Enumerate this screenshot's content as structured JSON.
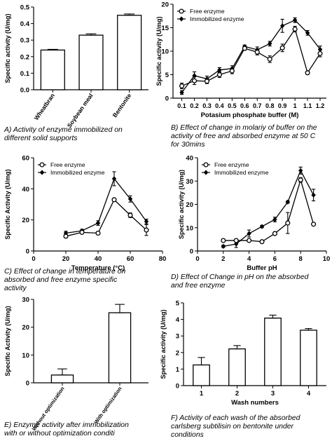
{
  "figure": {
    "background": "#ffffff",
    "ink_color": "#000000"
  },
  "chart_data": [
    {
      "id": "A",
      "type": "bar",
      "title": "",
      "xlabel": "",
      "ylabel": "Specific activity (U/mg)",
      "ylim": [
        0,
        0.5
      ],
      "yticks": [
        0.0,
        0.1,
        0.2,
        0.3,
        0.4,
        0.5
      ],
      "yticklabels": [
        "0.0",
        "0.1",
        "0.2",
        "0.3",
        "0.4",
        "0.5"
      ],
      "categories": [
        "Wheatbran",
        "Soybean meal",
        "Bentonite"
      ],
      "values": [
        0.24,
        0.33,
        0.45
      ],
      "errors": [
        0.004,
        0.008,
        0.008
      ],
      "caption": [
        "A) Activity of enzyme immobilized on",
        "different solid supports"
      ]
    },
    {
      "id": "B",
      "type": "line",
      "title": "",
      "xlabel": "Potasium phosphate buffer (M)",
      "ylabel": "Specific activity (U/mg)",
      "ylim": [
        0,
        20
      ],
      "yticks": [
        0,
        5,
        10,
        15,
        20
      ],
      "yticklabels": [
        "0",
        "5",
        "10",
        "15",
        "20"
      ],
      "x": [
        0.1,
        0.2,
        0.3,
        0.4,
        0.5,
        0.6,
        0.7,
        0.8,
        0.9,
        1.0,
        1.1,
        1.2
      ],
      "xticklabels": [
        "0.1",
        "0.2",
        "0.3",
        "0.4",
        "0.5",
        "0.6",
        "0.7",
        "0.8",
        "0.9",
        "1",
        "1.1",
        "1.2"
      ],
      "legend": [
        "Free enzyme",
        "Immobilized enzyme"
      ],
      "legend_position": "top-left",
      "series": [
        {
          "name": "Free enzyme",
          "marker": "open-circle",
          "values": [
            2.6,
            3.7,
            3.6,
            5.0,
            5.8,
            10.6,
            9.8,
            8.3,
            10.7,
            14.7,
            5.4,
            9.5
          ],
          "errors": [
            0.6,
            0.8,
            0.5,
            0.6,
            0.6,
            0.4,
            0.6,
            0.7,
            0.8,
            0.6,
            0.3,
            0.7
          ]
        },
        {
          "name": "Immobilized enzyme",
          "marker": "filled-diamond",
          "values": [
            1.2,
            4.8,
            4.1,
            6.0,
            6.3,
            11.0,
            10.3,
            11.6,
            15.4,
            16.6,
            13.9,
            10.4
          ],
          "errors": [
            0.4,
            0.8,
            0.6,
            0.5,
            0.6,
            0.3,
            0.6,
            0.5,
            1.4,
            0.5,
            0.5,
            0.7
          ]
        }
      ],
      "caption": [
        "B) Effect of change in molariy of buffer on the",
        "activity of free and absorbed enzyme at 50 C",
        "for 30mins"
      ]
    },
    {
      "id": "C",
      "type": "line",
      "title": "",
      "xlabel": "Temperature (°C)",
      "ylabel": "Specific Activity (U/mg)",
      "xlim": [
        0,
        80
      ],
      "xticks": [
        0,
        20,
        40,
        60,
        80
      ],
      "xticklabels": [
        "0",
        "20",
        "40",
        "60",
        "80"
      ],
      "ylim": [
        0,
        60
      ],
      "yticks": [
        0,
        20,
        40,
        60
      ],
      "yticklabels": [
        "0",
        "20",
        "40",
        "60"
      ],
      "x": [
        20,
        30,
        40,
        50,
        60,
        70
      ],
      "legend": [
        "Free enzyme",
        "Immobilized enzyme"
      ],
      "legend_position": "top-left",
      "series": [
        {
          "name": "Free enzyme",
          "marker": "open-circle",
          "values": [
            9.5,
            12.0,
            11.5,
            33.0,
            23.0,
            13.5
          ],
          "errors": [
            1.0,
            1.0,
            1.0,
            1.0,
            1.5,
            3.5
          ]
        },
        {
          "name": "Immobilized enzyme",
          "marker": "filled-diamond",
          "values": [
            11.5,
            13.0,
            18.0,
            46.5,
            33.5,
            19.0
          ],
          "errors": [
            1.2,
            1.0,
            1.5,
            4.5,
            2.0,
            1.5
          ]
        }
      ],
      "caption": [
        "C) Effect of change in temperature on",
        "absorbed and free enzyme specific",
        "activity"
      ]
    },
    {
      "id": "D",
      "type": "line",
      "title": "",
      "xlabel": "Buffer pH",
      "ylabel": "Specific activity (U/mg)",
      "xlim": [
        0,
        10
      ],
      "xticks": [
        0,
        2,
        4,
        6,
        8,
        10
      ],
      "xticklabels": [
        "0",
        "2",
        "4",
        "6",
        "8",
        "10"
      ],
      "ylim": [
        0,
        40
      ],
      "yticks": [
        0,
        10,
        20,
        30,
        40
      ],
      "yticklabels": [
        "0",
        "10",
        "20",
        "30",
        "40"
      ],
      "legend": [
        "Free enzyme",
        "Immobilized enzyme"
      ],
      "legend_position": "top-left",
      "series": [
        {
          "name": "Free enzyme",
          "marker": "open-circle",
          "x": [
            2,
            3,
            4,
            5,
            6,
            7,
            8,
            9
          ],
          "values": [
            4.5,
            4.5,
            4.5,
            4.0,
            7.5,
            12.0,
            30.5,
            11.5
          ],
          "errors": [
            0.5,
            0.5,
            0.5,
            0.5,
            0.5,
            4.5,
            1.0,
            0.5
          ]
        },
        {
          "name": "Immobilized enzyme",
          "marker": "filled-diamond",
          "x": [
            2,
            3,
            4,
            5,
            6,
            7,
            8,
            9
          ],
          "values": [
            2.0,
            3.0,
            7.5,
            10.5,
            13.5,
            21.0,
            34.5,
            24.0
          ],
          "errors": [
            0.5,
            1.5,
            1.5,
            0.5,
            1.0,
            0.5,
            1.5,
            2.5
          ]
        }
      ],
      "caption": [
        "D) Effect of Change in pH on the absorbed",
        "and free enzyme"
      ]
    },
    {
      "id": "E",
      "type": "bar",
      "title": "",
      "xlabel": "",
      "ylabel": "Specific Activity (U/mg)",
      "ylim": [
        0,
        30
      ],
      "yticks": [
        0,
        10,
        20,
        30
      ],
      "yticklabels": [
        "0",
        "10",
        "20",
        "30"
      ],
      "categories": [
        "Without optimization",
        "With optimization"
      ],
      "values": [
        2.8,
        25.2
      ],
      "errors": [
        2.2,
        3.0
      ],
      "caption": [
        "E) Enzyme activity after immobilization",
        "with or without optimization conditi"
      ]
    },
    {
      "id": "F",
      "type": "bar",
      "title": "",
      "xlabel": "Wash numbers",
      "ylabel": "Specific activity (U/mg)",
      "ylim": [
        0,
        5
      ],
      "yticks": [
        0,
        1,
        2,
        3,
        4,
        5
      ],
      "yticklabels": [
        "0",
        "1",
        "2",
        "3",
        "4",
        "5"
      ],
      "categories": [
        "1",
        "2",
        "3",
        "4"
      ],
      "values": [
        1.25,
        2.22,
        4.08,
        3.35
      ],
      "errors": [
        0.45,
        0.2,
        0.18,
        0.1
      ],
      "caption": [
        "F) Activity of each wash of the absorbed",
        "carlsberg subtilisin on bentonite under",
        "conditions"
      ]
    }
  ]
}
